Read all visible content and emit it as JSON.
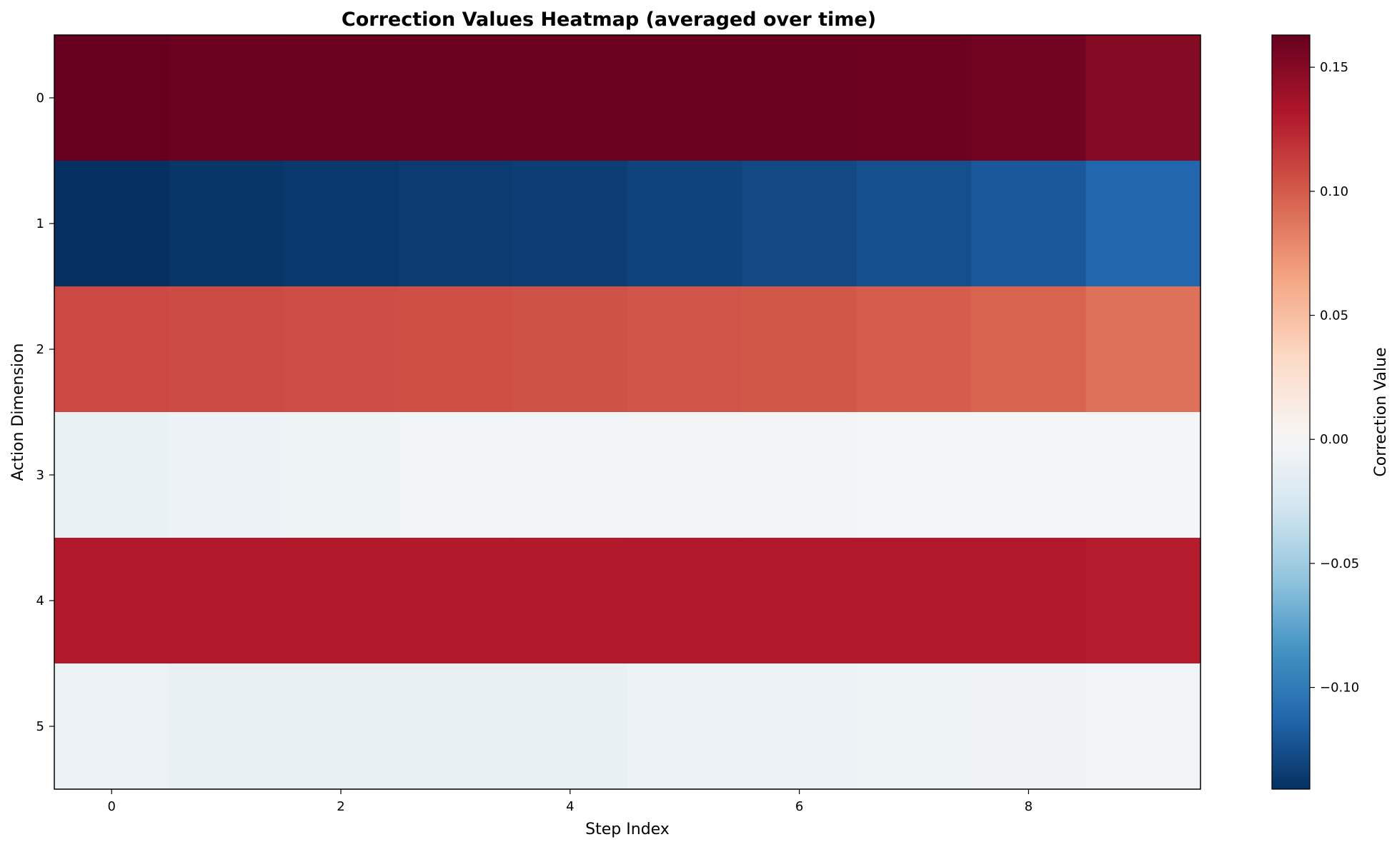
{
  "chart_data": {
    "type": "heatmap",
    "title": "Correction Values Heatmap (averaged over time)",
    "xlabel": "Step Index",
    "ylabel": "Action Dimension",
    "colorbar_label": "Correction Value",
    "colormap": "RdBu_r",
    "x_categories": [
      0,
      1,
      2,
      3,
      4,
      5,
      6,
      7,
      8,
      9
    ],
    "y_categories": [
      0,
      1,
      2,
      3,
      4,
      5
    ],
    "x_tick_labels": [
      "0",
      "2",
      "4",
      "6",
      "8"
    ],
    "y_tick_labels": [
      "0",
      "1",
      "2",
      "3",
      "4",
      "5"
    ],
    "colorbar_range": [
      -0.141,
      0.163
    ],
    "colorbar_ticks": [
      {
        "value": 0.15,
        "label": "0.15"
      },
      {
        "value": 0.1,
        "label": "0.10"
      },
      {
        "value": 0.05,
        "label": "0.05"
      },
      {
        "value": 0.0,
        "label": "0.00"
      },
      {
        "value": -0.05,
        "label": "−0.05"
      },
      {
        "value": -0.1,
        "label": "−0.10"
      }
    ],
    "values": [
      [
        0.163,
        0.162,
        0.162,
        0.162,
        0.162,
        0.162,
        0.162,
        0.161,
        0.158,
        0.15
      ],
      [
        -0.141,
        -0.138,
        -0.137,
        -0.135,
        -0.134,
        -0.131,
        -0.128,
        -0.125,
        -0.12,
        -0.112
      ],
      [
        0.108,
        0.107,
        0.106,
        0.105,
        0.104,
        0.103,
        0.102,
        0.099,
        0.096,
        0.09
      ],
      [
        -0.01,
        -0.008,
        -0.007,
        -0.005,
        -0.005,
        -0.004,
        -0.004,
        -0.003,
        -0.003,
        -0.003
      ],
      [
        0.13,
        0.13,
        0.13,
        0.13,
        0.13,
        0.131,
        0.131,
        0.131,
        0.131,
        0.129
      ],
      [
        -0.009,
        -0.011,
        -0.011,
        -0.011,
        -0.011,
        -0.009,
        -0.008,
        -0.007,
        -0.006,
        -0.005
      ]
    ],
    "grid": false,
    "legend": "none"
  }
}
